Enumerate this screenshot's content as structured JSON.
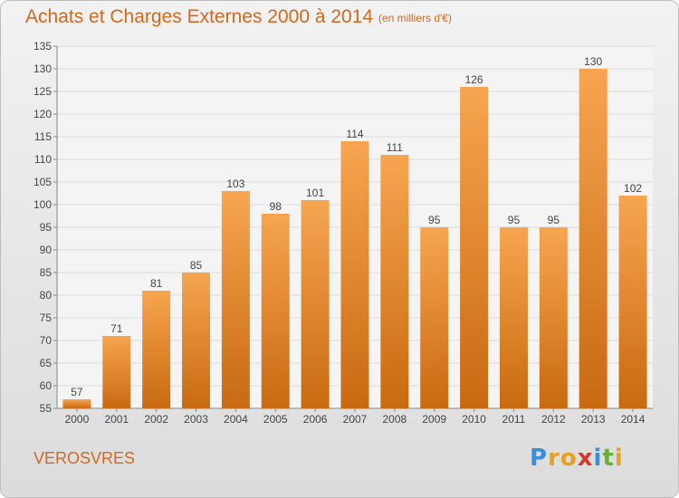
{
  "chart_data": {
    "type": "bar",
    "title": "Achats et Charges Externes 2000 à 2014",
    "subtitle": "(en milliers d'€)",
    "categories": [
      "2000",
      "2001",
      "2002",
      "2003",
      "2004",
      "2005",
      "2006",
      "2007",
      "2008",
      "2009",
      "2010",
      "2011",
      "2012",
      "2013",
      "2014"
    ],
    "values": [
      57,
      71,
      81,
      85,
      103,
      98,
      101,
      114,
      111,
      95,
      126,
      95,
      95,
      130,
      102
    ],
    "ylim": [
      55,
      135
    ],
    "yticks": [
      55,
      60,
      65,
      70,
      75,
      80,
      85,
      90,
      95,
      100,
      105,
      110,
      115,
      120,
      125,
      130,
      135
    ],
    "grid": true,
    "bar_color": "#e08a2e"
  },
  "footer": {
    "commune": "VEROSVRES",
    "logo_letters": [
      "P",
      "r",
      "o",
      "x",
      "i",
      "t",
      "i"
    ],
    "logo_colors": [
      "#3a8fd8",
      "#e8a020",
      "#e8a020",
      "#d83a2a",
      "#3a8fd8",
      "#6ab03a",
      "#e8a020"
    ]
  }
}
